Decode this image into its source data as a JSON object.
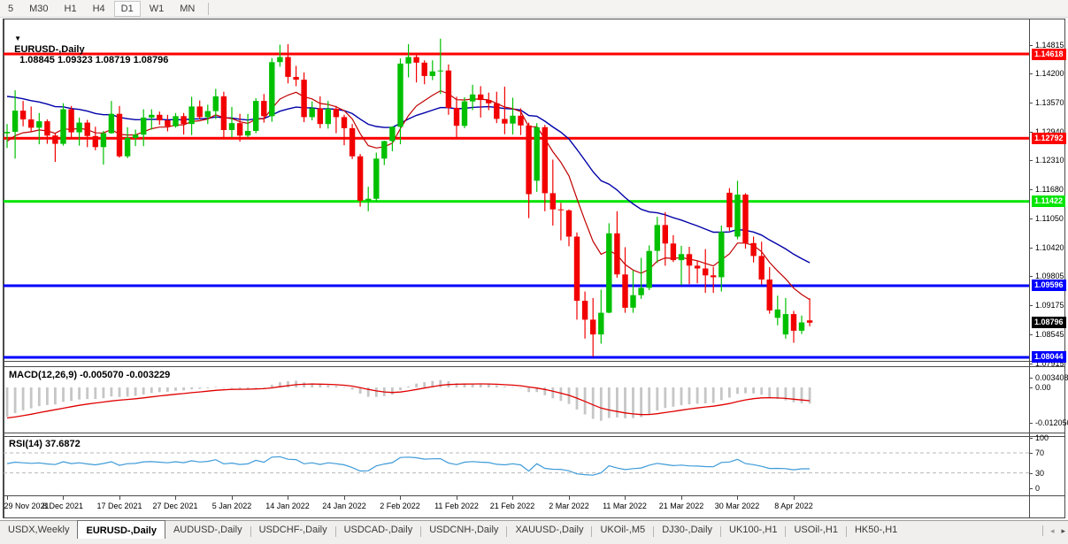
{
  "toolbar": {
    "timeframes": [
      "5",
      "M30",
      "H1",
      "H4",
      "D1",
      "W1",
      "MN"
    ],
    "active_timeframe": "D1"
  },
  "chart": {
    "dropdown_icon": "▼",
    "title": "EURUSD-,Daily",
    "ohlc_display": "1.08845 1.09323 1.08719 1.08796"
  },
  "chart_data": {
    "type": "candlestick",
    "symbol": "EURUSD-",
    "timeframe": "Daily",
    "title": "EURUSD-,Daily",
    "current_bar": {
      "open": 1.08845,
      "high": 1.09323,
      "low": 1.08719,
      "close": 1.08796
    },
    "x_tick_labels": [
      "29 Nov 2021",
      "8 Dec 2021",
      "17 Dec 2021",
      "27 Dec 2021",
      "5 Jan 2022",
      "14 Jan 2022",
      "24 Jan 2022",
      "2 Feb 2022",
      "11 Feb 2022",
      "21 Feb 2022",
      "2 Mar 2022",
      "11 Mar 2022",
      "21 Mar 2022",
      "30 Mar 2022",
      "8 Apr 2022"
    ],
    "candles_per_tick": 7,
    "price_axis_labels": [
      1.14815,
      1.142,
      1.1357,
      1.1294,
      1.1231,
      1.1168,
      1.1105,
      1.1042,
      1.09805,
      1.09175,
      1.08545,
      1.07915
    ],
    "hlines": [
      {
        "price": 1.14618,
        "color": "#ff0000"
      },
      {
        "price": 1.12792,
        "color": "#ff0000"
      },
      {
        "price": 1.11422,
        "color": "#00e400"
      },
      {
        "price": 1.09596,
        "color": "#0000ff"
      },
      {
        "price": 1.08044,
        "color": "#0000ff"
      }
    ],
    "current_price": 1.08796,
    "current_price_color": "#000000",
    "colors": {
      "up": "#00c000",
      "down": "#f20000",
      "ma_fast": "#c00000",
      "ma_slow": "#0000a8",
      "macd_hist": "#c6c6c6",
      "macd_signal": "#e00000",
      "rsi_line": "#3e9bd8",
      "rsi_levels": "#b8b8b8"
    },
    "candles": [
      [
        1.129,
        1.131,
        1.1258,
        1.1293
      ],
      [
        1.1293,
        1.1383,
        1.1235,
        1.1339
      ],
      [
        1.1339,
        1.136,
        1.1305,
        1.132
      ],
      [
        1.132,
        1.1348,
        1.1293,
        1.1302
      ],
      [
        1.1302,
        1.1334,
        1.1266,
        1.1316
      ],
      [
        1.1316,
        1.132,
        1.1267,
        1.1285
      ],
      [
        1.1285,
        1.129,
        1.1228,
        1.1267
      ],
      [
        1.1267,
        1.1355,
        1.1263,
        1.1342
      ],
      [
        1.1342,
        1.1349,
        1.1279,
        1.1292
      ],
      [
        1.1292,
        1.1324,
        1.1263,
        1.1313
      ],
      [
        1.1313,
        1.1319,
        1.126,
        1.1284
      ],
      [
        1.1284,
        1.1304,
        1.1253,
        1.126
      ],
      [
        1.126,
        1.1295,
        1.1222,
        1.129
      ],
      [
        1.129,
        1.136,
        1.1289,
        1.1332
      ],
      [
        1.1332,
        1.1349,
        1.1237,
        1.124
      ],
      [
        1.124,
        1.1303,
        1.1236,
        1.128
      ],
      [
        1.128,
        1.1298,
        1.1262,
        1.1287
      ],
      [
        1.1287,
        1.1342,
        1.1262,
        1.1324
      ],
      [
        1.1324,
        1.1342,
        1.1298,
        1.133
      ],
      [
        1.133,
        1.1337,
        1.1308,
        1.1318
      ],
      [
        1.1318,
        1.133,
        1.1294,
        1.1305
      ],
      [
        1.1305,
        1.1334,
        1.1302,
        1.1327
      ],
      [
        1.1327,
        1.1334,
        1.1287,
        1.131
      ],
      [
        1.131,
        1.1369,
        1.1286,
        1.1348
      ],
      [
        1.1348,
        1.1361,
        1.132,
        1.1325
      ],
      [
        1.1325,
        1.1352,
        1.131,
        1.1338
      ],
      [
        1.1338,
        1.1386,
        1.1321,
        1.137
      ],
      [
        1.137,
        1.138,
        1.1279,
        1.1297
      ],
      [
        1.1297,
        1.1347,
        1.1281,
        1.1312
      ],
      [
        1.1312,
        1.1332,
        1.1272,
        1.1285
      ],
      [
        1.1285,
        1.1332,
        1.1281,
        1.1295
      ],
      [
        1.1295,
        1.1366,
        1.129,
        1.136
      ],
      [
        1.136,
        1.1375,
        1.1313,
        1.1327
      ],
      [
        1.1327,
        1.1453,
        1.1315,
        1.1444
      ],
      [
        1.1444,
        1.1482,
        1.1434,
        1.1455
      ],
      [
        1.1455,
        1.1483,
        1.1398,
        1.1412
      ],
      [
        1.1412,
        1.1436,
        1.1392,
        1.1406
      ],
      [
        1.1406,
        1.1422,
        1.1314,
        1.1325
      ],
      [
        1.1325,
        1.1359,
        1.1318,
        1.1344
      ],
      [
        1.1344,
        1.137,
        1.1301,
        1.131
      ],
      [
        1.131,
        1.136,
        1.13,
        1.1343
      ],
      [
        1.1343,
        1.1349,
        1.129,
        1.1325
      ],
      [
        1.1325,
        1.133,
        1.1264,
        1.1301
      ],
      [
        1.1301,
        1.131,
        1.1234,
        1.124
      ],
      [
        1.124,
        1.1245,
        1.1131,
        1.1144
      ],
      [
        1.1144,
        1.1174,
        1.1121,
        1.1148
      ],
      [
        1.1148,
        1.1248,
        1.1141,
        1.1235
      ],
      [
        1.1235,
        1.1274,
        1.1221,
        1.1273
      ],
      [
        1.1273,
        1.1305,
        1.1251,
        1.1304
      ],
      [
        1.1304,
        1.1452,
        1.1266,
        1.1441
      ],
      [
        1.1441,
        1.1483,
        1.1411,
        1.1455
      ],
      [
        1.1455,
        1.1459,
        1.14,
        1.1443
      ],
      [
        1.1443,
        1.1448,
        1.1396,
        1.1414
      ],
      [
        1.1414,
        1.1448,
        1.1405,
        1.1424
      ],
      [
        1.1424,
        1.1495,
        1.1375,
        1.1426
      ],
      [
        1.1426,
        1.1439,
        1.133,
        1.1345
      ],
      [
        1.1345,
        1.1369,
        1.1277,
        1.1306
      ],
      [
        1.1306,
        1.1368,
        1.1301,
        1.1359
      ],
      [
        1.1359,
        1.1395,
        1.134,
        1.1374
      ],
      [
        1.1374,
        1.1392,
        1.1324,
        1.1362
      ],
      [
        1.1362,
        1.1378,
        1.134,
        1.1355
      ],
      [
        1.1355,
        1.138,
        1.1312,
        1.1321
      ],
      [
        1.1321,
        1.1391,
        1.1288,
        1.1311
      ],
      [
        1.1311,
        1.1367,
        1.1287,
        1.1328
      ],
      [
        1.1328,
        1.1344,
        1.1286,
        1.1307
      ],
      [
        1.1307,
        1.1313,
        1.1106,
        1.1158
      ],
      [
        1.1187,
        1.1312,
        1.1163,
        1.1303
      ],
      [
        1.1303,
        1.1308,
        1.1121,
        1.116
      ],
      [
        1.116,
        1.1233,
        1.109,
        1.1125
      ],
      [
        1.1125,
        1.1139,
        1.1058,
        1.1123
      ],
      [
        1.1123,
        1.1125,
        1.1045,
        1.1066
      ],
      [
        1.1066,
        1.1075,
        1.0886,
        1.0927
      ],
      [
        1.0927,
        1.0947,
        1.0845,
        1.0886
      ],
      [
        1.0886,
        1.0933,
        1.0806,
        1.0854
      ],
      [
        1.0854,
        1.0951,
        1.0834,
        1.0901
      ],
      [
        1.0901,
        1.1095,
        1.09,
        1.1073
      ],
      [
        1.1073,
        1.1121,
        1.0977,
        1.0984
      ],
      [
        1.0984,
        1.1043,
        1.0901,
        1.0912
      ],
      [
        1.0912,
        1.0993,
        1.0901,
        1.0939
      ],
      [
        1.0939,
        1.102,
        1.0931,
        1.0955
      ],
      [
        1.0955,
        1.1047,
        1.095,
        1.1035
      ],
      [
        1.1035,
        1.1109,
        1.1009,
        1.1091
      ],
      [
        1.1091,
        1.1119,
        1.1003,
        1.1051
      ],
      [
        1.1051,
        1.1069,
        1.1011,
        1.1015
      ],
      [
        1.1015,
        1.1046,
        1.0961,
        1.1028
      ],
      [
        1.1028,
        1.1044,
        1.0963,
        1.1003
      ],
      [
        1.1003,
        1.1014,
        1.0965,
        1.0997
      ],
      [
        1.0997,
        1.1039,
        1.0944,
        1.0982
      ],
      [
        1.0982,
        1.1,
        1.0944,
        1.0978
      ],
      [
        1.0978,
        1.109,
        1.0947,
        1.1076
      ],
      [
        1.1161,
        1.1171,
        1.1078,
        1.1086
      ],
      [
        1.1066,
        1.1187,
        1.106,
        1.1157
      ],
      [
        1.1157,
        1.116,
        1.104,
        1.1052
      ],
      [
        1.1052,
        1.1066,
        1.101,
        1.1024
      ],
      [
        1.1024,
        1.1055,
        1.0962,
        1.0973
      ],
      [
        1.0973,
        1.1,
        1.0899,
        1.0906
      ],
      [
        1.089,
        1.0938,
        1.0874,
        1.0908
      ],
      [
        1.0854,
        1.0933,
        1.0845,
        1.0898
      ],
      [
        1.0898,
        1.0905,
        1.0836,
        1.0862
      ],
      [
        1.0862,
        1.0895,
        1.0855,
        1.088
      ],
      [
        1.08845,
        1.09323,
        1.08719,
        1.08796
      ]
    ],
    "macd": {
      "label": "MACD(12,26,9) -0.005070 -0.003229",
      "params": [
        12,
        26,
        9
      ],
      "main_value": -0.00507,
      "signal_value": -0.003229,
      "axis_labels": [
        "0.003408",
        "0.00",
        "-0.012050"
      ]
    },
    "rsi": {
      "label": "RSI(14) 37.6872",
      "period": 14,
      "value": 37.6872,
      "axis_labels": [
        100,
        70,
        30,
        0
      ],
      "level_lines": [
        70,
        30
      ]
    }
  },
  "tabs": {
    "items": [
      {
        "label": "USDX,Weekly"
      },
      {
        "label": "EURUSD-,Daily"
      },
      {
        "label": "AUDUSD-,Daily"
      },
      {
        "label": "USDCHF-,Daily"
      },
      {
        "label": "USDCAD-,Daily"
      },
      {
        "label": "USDCNH-,Daily"
      },
      {
        "label": "XAUUSD-,Daily"
      },
      {
        "label": "UKOil-,M5"
      },
      {
        "label": "DJ30-,Daily"
      },
      {
        "label": "UK100-,H1"
      },
      {
        "label": "USOil-,H1"
      },
      {
        "label": "HK50-,H1"
      }
    ],
    "active_index": 1,
    "scroll_left_icon": "◂",
    "scroll_right_icon": "▸"
  }
}
